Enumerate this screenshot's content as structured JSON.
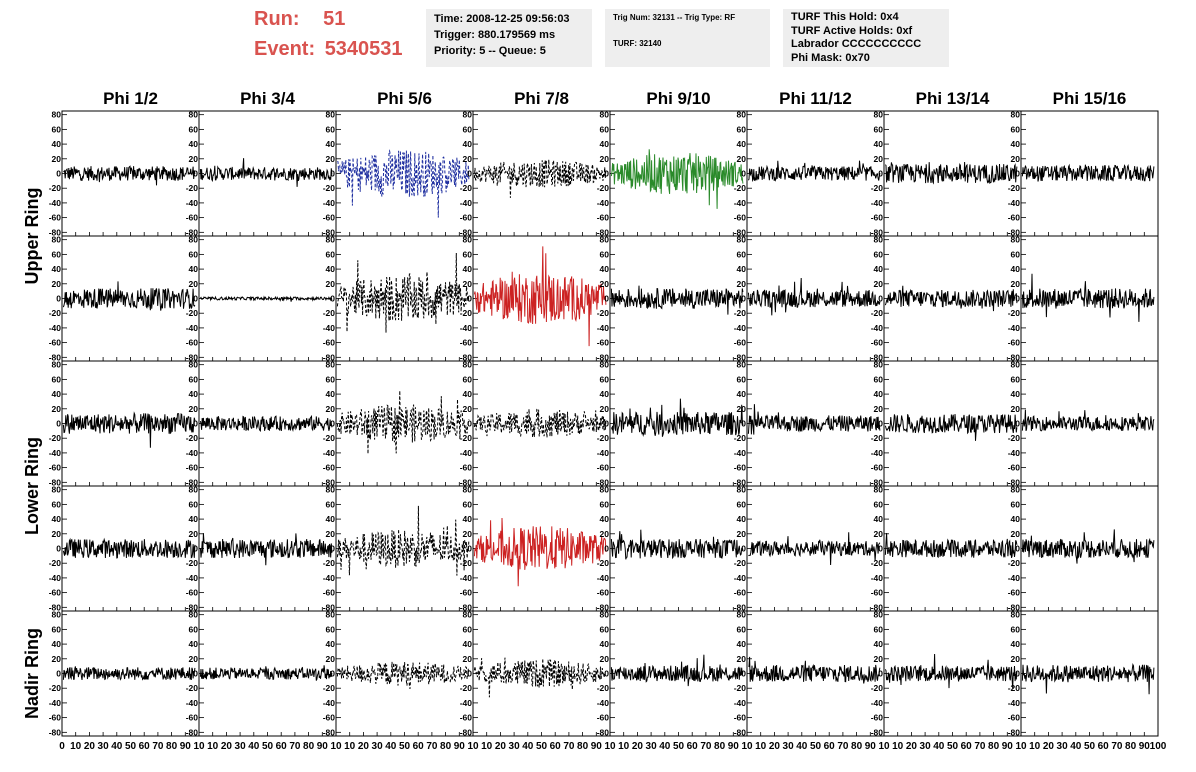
{
  "header": {
    "run_label": "Run:",
    "run_value": "51",
    "event_label": "Event:",
    "event_value": "5340531",
    "time_lines": [
      "Time: 2008-12-25 09:56:03",
      "Trigger: 880.179569 ms",
      "Priority: 5 -- Queue: 5"
    ],
    "trig_lines": [
      "Trig Num: 32131 -- Trig Type: RF",
      "",
      "TURF: 32140"
    ],
    "turf_lines": [
      "TURF This Hold: 0x4",
      "TURF Active Holds: 0xf",
      "Labrador CCCCCCCCCC",
      "Phi Mask: 0x70"
    ]
  },
  "colors": {
    "header_red": "#d9534f",
    "box_bg": "#eeeeee",
    "trace_black": "#000000",
    "trace_blue": "#1f2fa0",
    "trace_green": "#2a8a2a",
    "trace_red": "#cc2222"
  },
  "chart_data": {
    "type": "line",
    "columns": [
      "Phi 1/2",
      "Phi 3/4",
      "Phi 5/6",
      "Phi 7/8",
      "Phi 9/10",
      "Phi 11/12",
      "Phi 13/14",
      "Phi 15/16"
    ],
    "row_labels": [
      "Upper Ring",
      "Lower Ring",
      "Nadir Ring"
    ],
    "ylim": [
      -85,
      85
    ],
    "xlim": [
      0,
      100
    ],
    "y_ticks": [
      80,
      60,
      40,
      20,
      0,
      -20,
      -40,
      -60,
      -80
    ],
    "x_ticks": [
      0,
      10,
      20,
      30,
      40,
      50,
      60,
      70,
      80,
      90,
      100
    ],
    "panel_x_tick_labels": [
      "0",
      "10",
      "20",
      "30",
      "40",
      "50",
      "60",
      "70",
      "80",
      "90",
      "10"
    ],
    "last_x_tick_label": "100",
    "panels": [
      [
        {
          "amp": 10,
          "color": "black",
          "dash": false
        },
        {
          "amp": 9,
          "color": "black",
          "dash": false
        },
        {
          "amp": 28,
          "color": "blue",
          "dash": true
        },
        {
          "amp": 16,
          "color": "black",
          "dash": true
        },
        {
          "amp": 24,
          "color": "green",
          "dash": false
        },
        {
          "amp": 10,
          "color": "black",
          "dash": false
        },
        {
          "amp": 13,
          "color": "black",
          "dash": false
        },
        {
          "amp": 11,
          "color": "black",
          "dash": false
        }
      ],
      [
        {
          "amp": 14,
          "color": "black",
          "dash": false
        },
        {
          "amp": 2,
          "color": "black",
          "dash": false
        },
        {
          "amp": 28,
          "color": "black",
          "dash": true
        },
        {
          "amp": 30,
          "color": "red",
          "dash": false
        },
        {
          "amp": 14,
          "color": "black",
          "dash": false
        },
        {
          "amp": 12,
          "color": "black",
          "dash": false
        },
        {
          "amp": 12,
          "color": "black",
          "dash": false
        },
        {
          "amp": 14,
          "color": "black",
          "dash": false
        }
      ],
      [
        {
          "amp": 14,
          "color": "black",
          "dash": false
        },
        {
          "amp": 10,
          "color": "black",
          "dash": false
        },
        {
          "amp": 22,
          "color": "black",
          "dash": true
        },
        {
          "amp": 16,
          "color": "black",
          "dash": true
        },
        {
          "amp": 16,
          "color": "black",
          "dash": false
        },
        {
          "amp": 11,
          "color": "black",
          "dash": false
        },
        {
          "amp": 13,
          "color": "black",
          "dash": false
        },
        {
          "amp": 10,
          "color": "black",
          "dash": false
        }
      ],
      [
        {
          "amp": 13,
          "color": "black",
          "dash": false
        },
        {
          "amp": 13,
          "color": "black",
          "dash": false
        },
        {
          "amp": 22,
          "color": "black",
          "dash": true
        },
        {
          "amp": 26,
          "color": "red",
          "dash": false
        },
        {
          "amp": 13,
          "color": "black",
          "dash": false
        },
        {
          "amp": 10,
          "color": "black",
          "dash": false
        },
        {
          "amp": 12,
          "color": "black",
          "dash": false
        },
        {
          "amp": 13,
          "color": "black",
          "dash": false
        }
      ],
      [
        {
          "amp": 9,
          "color": "black",
          "dash": false
        },
        {
          "amp": 8,
          "color": "black",
          "dash": false
        },
        {
          "amp": 14,
          "color": "black",
          "dash": true
        },
        {
          "amp": 16,
          "color": "black",
          "dash": true
        },
        {
          "amp": 11,
          "color": "black",
          "dash": false
        },
        {
          "amp": 12,
          "color": "black",
          "dash": false
        },
        {
          "amp": 11,
          "color": "black",
          "dash": false
        },
        {
          "amp": 12,
          "color": "black",
          "dash": false
        }
      ]
    ]
  }
}
